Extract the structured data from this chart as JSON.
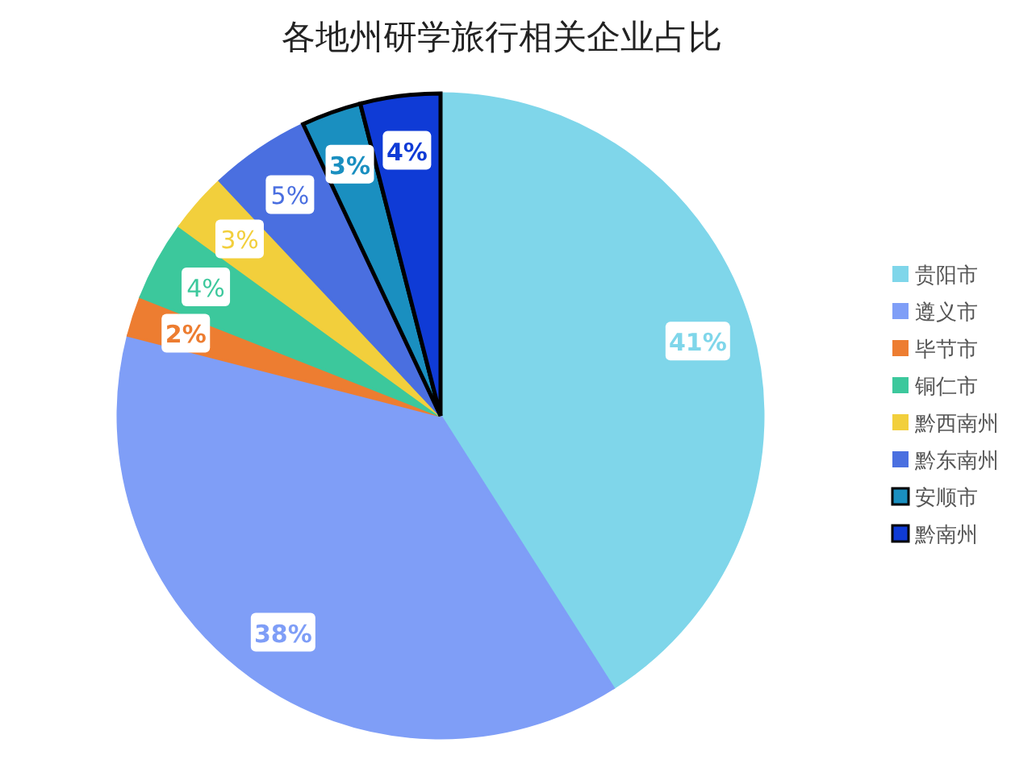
{
  "chart_data": {
    "type": "pie",
    "title": "各地州研学旅行相关企业占比",
    "categories": [
      "贵阳市",
      "遵义市",
      "毕节市",
      "铜仁市",
      "黔西南州",
      "黔东南州",
      "安顺市",
      "黔南州"
    ],
    "values": [
      41,
      38,
      2,
      4,
      3,
      5,
      3,
      4
    ],
    "colors": [
      "#7fd6ea",
      "#7f9ef7",
      "#ed7d31",
      "#3cc89c",
      "#f2cf3c",
      "#4a6fe0",
      "#1a8fc0",
      "#0f3bd6"
    ],
    "value_labels": [
      "41%",
      "38%",
      "2%",
      "4%",
      "3%",
      "5%",
      "3%",
      "4%"
    ],
    "legend": "right"
  }
}
